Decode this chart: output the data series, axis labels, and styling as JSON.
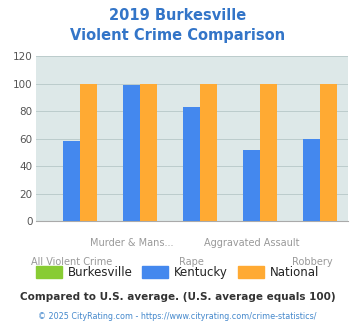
{
  "title_line1": "2019 Burkesville",
  "title_line2": "Violent Crime Comparison",
  "title_color": "#3375c8",
  "categories": [
    "All Violent Crime",
    "Murder & Mans...",
    "Rape",
    "Aggravated Assault",
    "Robbery"
  ],
  "burkesville": [
    0,
    0,
    0,
    0,
    0
  ],
  "kentucky": [
    58,
    99,
    83,
    52,
    60
  ],
  "national": [
    100,
    100,
    100,
    100,
    100
  ],
  "bar_colors": {
    "burkesville": "#88cc33",
    "kentucky": "#4488ee",
    "national": "#ffaa33"
  },
  "ylim": [
    0,
    120
  ],
  "yticks": [
    0,
    20,
    40,
    60,
    80,
    100,
    120
  ],
  "grid_color": "#bbcccc",
  "bg_color": "#dde8e8",
  "legend_labels": [
    "Burkesville",
    "Kentucky",
    "National"
  ],
  "footnote1": "Compared to U.S. average. (U.S. average equals 100)",
  "footnote2": "© 2025 CityRating.com - https://www.cityrating.com/crime-statistics/",
  "footnote1_color": "#333333",
  "footnote2_color": "#4488cc",
  "xlabel_color": "#999999",
  "xlabel_fontsize": 7.0
}
